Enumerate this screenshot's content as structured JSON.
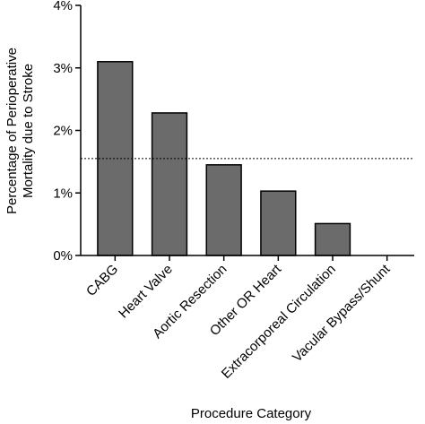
{
  "chart_data": {
    "type": "bar",
    "x_label": "Procedure Category",
    "y_label": [
      "Percentage of Perioperative",
      "Mortality due to Stroke"
    ],
    "categories": [
      "CABG",
      "Heart Valve",
      "Aortic Resection",
      "Other OR Heart",
      "Extracorporeal Circulation",
      "Vacular Bypass/Shunt"
    ],
    "values": [
      3.1,
      2.28,
      1.45,
      1.03,
      0.51,
      0
    ],
    "color": "#6b6b6b",
    "ylim": [
      0,
      4
    ],
    "yticks": [
      {
        "value": 0,
        "label": "0%"
      },
      {
        "value": 1,
        "label": "1%"
      },
      {
        "value": 2,
        "label": "2%"
      },
      {
        "value": 3,
        "label": "3%"
      },
      {
        "value": 4,
        "label": "4%"
      }
    ],
    "reference_line": 1.55,
    "grid": false
  }
}
